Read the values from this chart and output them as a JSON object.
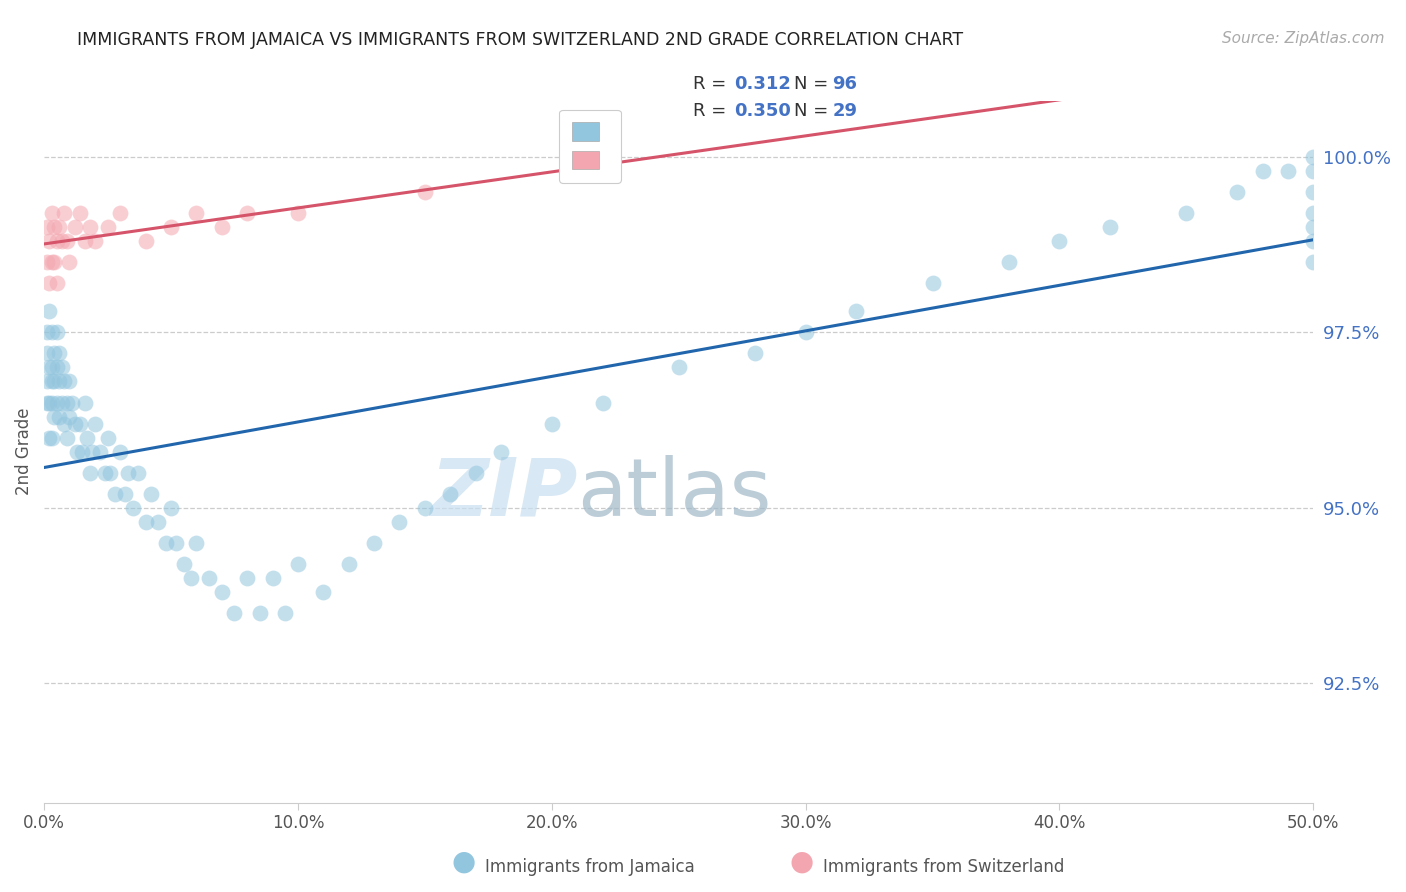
{
  "title": "IMMIGRANTS FROM JAMAICA VS IMMIGRANTS FROM SWITZERLAND 2ND GRADE CORRELATION CHART",
  "source_text": "Source: ZipAtlas.com",
  "ylabel": "2nd Grade",
  "xlim": [
    0.0,
    0.5
  ],
  "ylim": [
    0.908,
    1.008
  ],
  "yticks": [
    0.925,
    0.95,
    0.975,
    1.0
  ],
  "ytick_labels": [
    "92.5%",
    "95.0%",
    "97.5%",
    "100.0%"
  ],
  "xticks": [
    0.0,
    0.1,
    0.2,
    0.3,
    0.4,
    0.5
  ],
  "xtick_labels": [
    "0.0%",
    "10.0%",
    "20.0%",
    "30.0%",
    "40.0%",
    "50.0%"
  ],
  "jamaica_color": "#92c5de",
  "switzerland_color": "#f4a6b0",
  "jamaica_line_color": "#2166ac",
  "switzerland_line_color": "#d6546a",
  "jamaica_R": 0.312,
  "jamaica_N": 96,
  "switzerland_R": 0.35,
  "switzerland_N": 29,
  "watermark_zip": "ZIP",
  "watermark_atlas": "atlas",
  "legend_jamaica": "Immigrants from Jamaica",
  "legend_switzerland": "Immigrants from Switzerland",
  "jamaica_x": [
    0.001,
    0.001,
    0.001,
    0.001,
    0.002,
    0.002,
    0.002,
    0.002,
    0.003,
    0.003,
    0.003,
    0.003,
    0.003,
    0.004,
    0.004,
    0.004,
    0.005,
    0.005,
    0.005,
    0.006,
    0.006,
    0.006,
    0.007,
    0.007,
    0.008,
    0.008,
    0.009,
    0.009,
    0.01,
    0.01,
    0.011,
    0.012,
    0.013,
    0.014,
    0.015,
    0.016,
    0.017,
    0.018,
    0.019,
    0.02,
    0.022,
    0.024,
    0.025,
    0.026,
    0.028,
    0.03,
    0.032,
    0.033,
    0.035,
    0.037,
    0.04,
    0.042,
    0.045,
    0.048,
    0.05,
    0.052,
    0.055,
    0.058,
    0.06,
    0.065,
    0.07,
    0.075,
    0.08,
    0.085,
    0.09,
    0.095,
    0.1,
    0.11,
    0.12,
    0.13,
    0.14,
    0.15,
    0.16,
    0.17,
    0.18,
    0.2,
    0.22,
    0.25,
    0.28,
    0.3,
    0.32,
    0.35,
    0.38,
    0.4,
    0.42,
    0.45,
    0.47,
    0.48,
    0.49,
    0.5,
    0.5,
    0.5,
    0.5,
    0.5,
    0.5,
    0.5
  ],
  "jamaica_y": [
    0.975,
    0.972,
    0.968,
    0.965,
    0.978,
    0.97,
    0.965,
    0.96,
    0.975,
    0.97,
    0.968,
    0.965,
    0.96,
    0.972,
    0.968,
    0.963,
    0.975,
    0.97,
    0.965,
    0.972,
    0.968,
    0.963,
    0.97,
    0.965,
    0.968,
    0.962,
    0.965,
    0.96,
    0.968,
    0.963,
    0.965,
    0.962,
    0.958,
    0.962,
    0.958,
    0.965,
    0.96,
    0.955,
    0.958,
    0.962,
    0.958,
    0.955,
    0.96,
    0.955,
    0.952,
    0.958,
    0.952,
    0.955,
    0.95,
    0.955,
    0.948,
    0.952,
    0.948,
    0.945,
    0.95,
    0.945,
    0.942,
    0.94,
    0.945,
    0.94,
    0.938,
    0.935,
    0.94,
    0.935,
    0.94,
    0.935,
    0.942,
    0.938,
    0.942,
    0.945,
    0.948,
    0.95,
    0.952,
    0.955,
    0.958,
    0.962,
    0.965,
    0.97,
    0.972,
    0.975,
    0.978,
    0.982,
    0.985,
    0.988,
    0.99,
    0.992,
    0.995,
    0.998,
    0.998,
    1.0,
    0.998,
    0.995,
    0.992,
    0.99,
    0.988,
    0.985
  ],
  "switzerland_x": [
    0.001,
    0.001,
    0.002,
    0.002,
    0.003,
    0.003,
    0.004,
    0.004,
    0.005,
    0.005,
    0.006,
    0.007,
    0.008,
    0.009,
    0.01,
    0.012,
    0.014,
    0.016,
    0.018,
    0.02,
    0.025,
    0.03,
    0.04,
    0.05,
    0.06,
    0.07,
    0.08,
    0.1,
    0.15
  ],
  "switzerland_y": [
    0.99,
    0.985,
    0.988,
    0.982,
    0.992,
    0.985,
    0.99,
    0.985,
    0.988,
    0.982,
    0.99,
    0.988,
    0.992,
    0.988,
    0.985,
    0.99,
    0.992,
    0.988,
    0.99,
    0.988,
    0.99,
    0.992,
    0.988,
    0.99,
    0.992,
    0.99,
    0.992,
    0.992,
    0.995
  ]
}
